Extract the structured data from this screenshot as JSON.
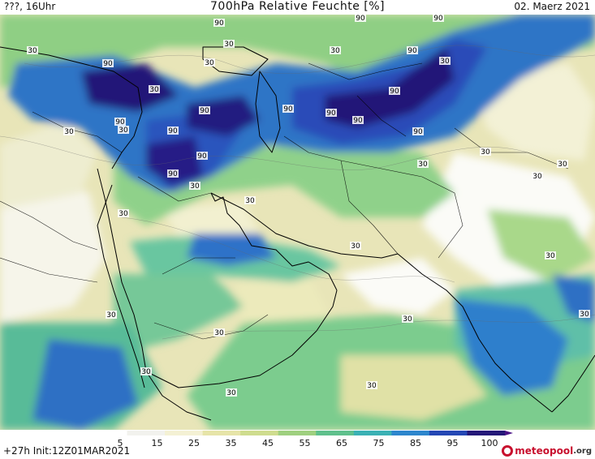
{
  "header": {
    "left": "???, 16Uhr",
    "title": "700hPa Relative Feuchte [%]",
    "right": "02. Maerz 2021"
  },
  "footer": {
    "left": "+27h Init:12Z01MAR2021",
    "brand_main": "meteopool",
    "brand_suffix": ".org"
  },
  "colorbar": {
    "ticks": [
      "5",
      "15",
      "25",
      "35",
      "45",
      "55",
      "65",
      "75",
      "85",
      "95",
      "100"
    ],
    "colors": [
      "#ffffff",
      "#f2f2ee",
      "#f4f1d4",
      "#e6e4a8",
      "#cfdc8e",
      "#9fd07f",
      "#5fc08c",
      "#3ab1b4",
      "#2d86cd",
      "#2447b4",
      "#241878",
      "#4a1286"
    ]
  },
  "contour_labels": [
    "30",
    "30",
    "30",
    "30",
    "90",
    "90",
    "90",
    "90",
    "90",
    "90",
    "90",
    "90",
    "90",
    "90",
    "90",
    "90",
    "90",
    "90",
    "90",
    "30",
    "30",
    "30",
    "30",
    "30",
    "30",
    "30",
    "30",
    "30",
    "30",
    "30",
    "30",
    "30",
    "30",
    "30",
    "30",
    "30",
    "30",
    "30",
    "30"
  ]
}
